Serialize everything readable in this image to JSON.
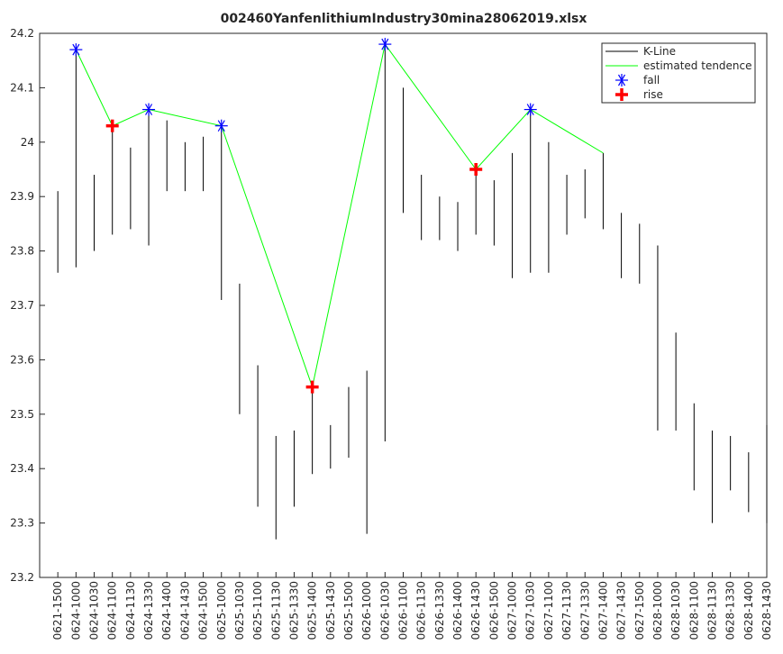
{
  "chart_data": {
    "type": "kline",
    "title": "002460YanfenlithiumIndustry30mina28062019.xlsx",
    "categories": [
      "0621-1500",
      "0624-1000",
      "0624-1030",
      "0624-1100",
      "0624-1130",
      "0624-1330",
      "0624-1400",
      "0624-1430",
      "0624-1500",
      "0625-1000",
      "0625-1030",
      "0625-1100",
      "0625-1130",
      "0625-1330",
      "0625-1400",
      "0625-1430",
      "0625-1500",
      "0626-1000",
      "0626-1030",
      "0626-1100",
      "0626-1130",
      "0626-1330",
      "0626-1400",
      "0626-1430",
      "0626-1500",
      "0627-1000",
      "0627-1030",
      "0627-1100",
      "0627-1130",
      "0627-1330",
      "0627-1400",
      "0627-1430",
      "0627-1500",
      "0628-1000",
      "0628-1030",
      "0628-1100",
      "0628-1130",
      "0628-1330",
      "0628-1400",
      "0628-1430"
    ],
    "ylim": [
      23.2,
      24.2
    ],
    "yticks": [
      23.2,
      23.3,
      23.4,
      23.5,
      23.6,
      23.7,
      23.8,
      23.9,
      24,
      24.1,
      24.2
    ],
    "grid": false,
    "legend": "upper right",
    "series": [
      {
        "name": "K-Line",
        "color": "#000000",
        "high": [
          23.91,
          24.17,
          23.94,
          24.03,
          23.99,
          24.06,
          24.04,
          24.0,
          24.01,
          24.03,
          23.74,
          23.59,
          23.46,
          23.47,
          23.55,
          23.48,
          23.55,
          23.58,
          24.18,
          24.1,
          23.94,
          23.9,
          23.89,
          23.95,
          23.93,
          23.98,
          24.06,
          24.0,
          23.94,
          23.95,
          23.98,
          23.87,
          23.85,
          23.81,
          23.65,
          23.52,
          23.47,
          23.46,
          23.43,
          23.48
        ],
        "low": [
          23.76,
          23.77,
          23.8,
          23.83,
          23.84,
          23.81,
          23.91,
          23.91,
          23.91,
          23.71,
          23.5,
          23.33,
          23.27,
          23.33,
          23.39,
          23.4,
          23.42,
          23.28,
          23.45,
          23.87,
          23.82,
          23.82,
          23.8,
          23.83,
          23.81,
          23.75,
          23.76,
          23.76,
          23.83,
          23.86,
          23.84,
          23.75,
          23.74,
          23.47,
          23.47,
          23.36,
          23.3,
          23.36,
          23.32,
          23.3
        ]
      },
      {
        "name": "estimated tendence",
        "color": "#00ff00",
        "x": [
          "0624-1000",
          "0624-1100",
          "0624-1330",
          "0625-1000",
          "0625-1400",
          "0626-1030",
          "0626-1430",
          "0627-1030",
          "0627-1400"
        ],
        "values": [
          24.17,
          24.03,
          24.06,
          24.03,
          23.55,
          24.18,
          23.95,
          24.06,
          23.98
        ]
      },
      {
        "name": "fall",
        "color": "#0000ff",
        "marker": "asterisk",
        "x": [
          "0624-1000",
          "0624-1330",
          "0625-1000",
          "0626-1030",
          "0627-1030"
        ],
        "values": [
          24.17,
          24.06,
          24.03,
          24.18,
          24.06
        ]
      },
      {
        "name": "rise",
        "color": "#ff0000",
        "marker": "plus",
        "x": [
          "0624-1100",
          "0625-1400",
          "0626-1430"
        ],
        "values": [
          24.03,
          23.55,
          23.95
        ]
      }
    ]
  }
}
